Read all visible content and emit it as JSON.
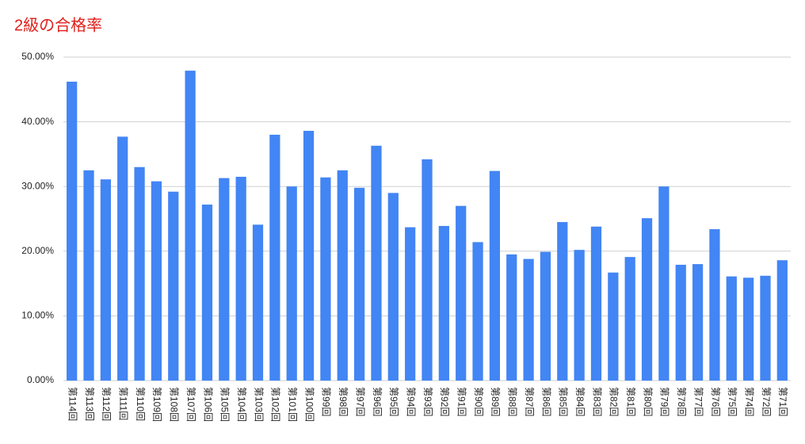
{
  "chart_data": {
    "type": "bar",
    "title": "2級の合格率",
    "categories": [
      "第114回",
      "第113回",
      "第112回",
      "第111回",
      "第110回",
      "第109回",
      "第108回",
      "第107回",
      "第106回",
      "第105回",
      "第104回",
      "第103回",
      "第102回",
      "第101回",
      "第100回",
      "第99回",
      "第98回",
      "第97回",
      "第96回",
      "第95回",
      "第94回",
      "第93回",
      "第92回",
      "第91回",
      "第90回",
      "第89回",
      "第88回",
      "第87回",
      "第86回",
      "第85回",
      "第84回",
      "第83回",
      "第82回",
      "第81回",
      "第80回",
      "第79回",
      "第78回",
      "第77回",
      "第76回",
      "第75回",
      "第74回",
      "第72回",
      "第71回"
    ],
    "values": [
      46.2,
      32.5,
      31.1,
      37.7,
      33.0,
      30.8,
      29.2,
      47.9,
      27.2,
      31.3,
      31.5,
      24.1,
      38.0,
      30.0,
      38.6,
      31.4,
      32.5,
      29.8,
      36.3,
      29.0,
      23.7,
      34.2,
      23.9,
      27.0,
      21.4,
      32.4,
      19.5,
      18.8,
      19.9,
      24.5,
      20.2,
      23.8,
      16.7,
      19.1,
      25.1,
      30.0,
      17.9,
      18.0,
      23.4,
      16.1,
      15.9,
      16.2,
      18.6
    ],
    "color": "#4285f4",
    "ylim": [
      0,
      50
    ],
    "yticks": [
      {
        "value": 0,
        "label": "0.00%"
      },
      {
        "value": 10,
        "label": "10.00%"
      },
      {
        "value": 20,
        "label": "20.00%"
      },
      {
        "value": 30,
        "label": "30.00%"
      },
      {
        "value": 40,
        "label": "40.00%"
      },
      {
        "value": 50,
        "label": "50.00%"
      }
    ],
    "grid": true
  }
}
